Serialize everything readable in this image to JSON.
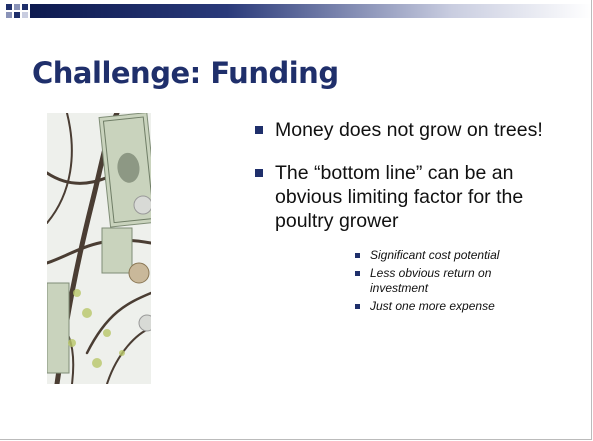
{
  "title": "Challenge: Funding",
  "bullets": [
    {
      "text": "Money does not grow on trees!"
    },
    {
      "text": "The “bottom line” can be an obvious limiting factor for the poultry grower",
      "sub": [
        "Significant cost potential",
        "Less obvious return on investment",
        "Just one more expense"
      ]
    }
  ]
}
